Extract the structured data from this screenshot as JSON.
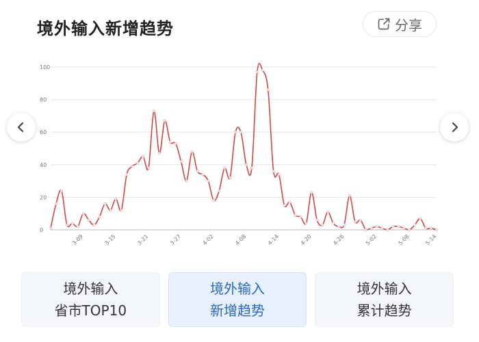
{
  "header": {
    "title": "境外输入新增趋势",
    "share_label": "分享"
  },
  "icons": {
    "share": "share-icon",
    "prev": "chevron-left-icon",
    "next": "chevron-right-icon"
  },
  "tabs": [
    {
      "line1": "境外输入",
      "line2": "省市TOP10",
      "active": false
    },
    {
      "line1": "境外输入",
      "line2": "新增趋势",
      "active": true
    },
    {
      "line1": "境外输入",
      "line2": "累计趋势",
      "active": false
    }
  ],
  "colors": {
    "line": "#d44444",
    "active_tab_text": "#2b67c9"
  },
  "chart_data": {
    "type": "line",
    "title": "",
    "xlabel": "",
    "ylabel": "",
    "ylim": [
      0,
      100
    ],
    "y_ticks": [
      "0",
      "20",
      "40",
      "60",
      "80",
      "100"
    ],
    "x_tick_labels": [
      "3-09",
      "3-15",
      "3-21",
      "3-27",
      "4-02",
      "4-08",
      "4-14",
      "4-20",
      "4-26",
      "5-02",
      "5-08",
      "5-14"
    ],
    "grid": true,
    "series": [
      {
        "values": [
          1,
          16,
          24,
          3,
          4,
          2,
          10,
          6,
          3,
          8,
          16,
          12,
          19,
          12,
          34,
          39,
          41,
          45,
          38,
          73,
          47,
          67,
          54,
          53,
          42,
          30,
          48,
          36,
          34,
          30,
          18,
          24,
          38,
          32,
          60,
          60,
          40,
          38,
          97,
          98,
          86,
          36,
          34,
          15,
          17,
          9,
          8,
          4,
          23,
          6,
          3,
          11,
          4,
          2,
          3,
          21,
          5,
          6,
          0,
          1,
          2,
          1,
          0,
          2,
          2,
          1,
          0,
          3,
          7,
          1,
          1,
          0
        ]
      }
    ]
  }
}
